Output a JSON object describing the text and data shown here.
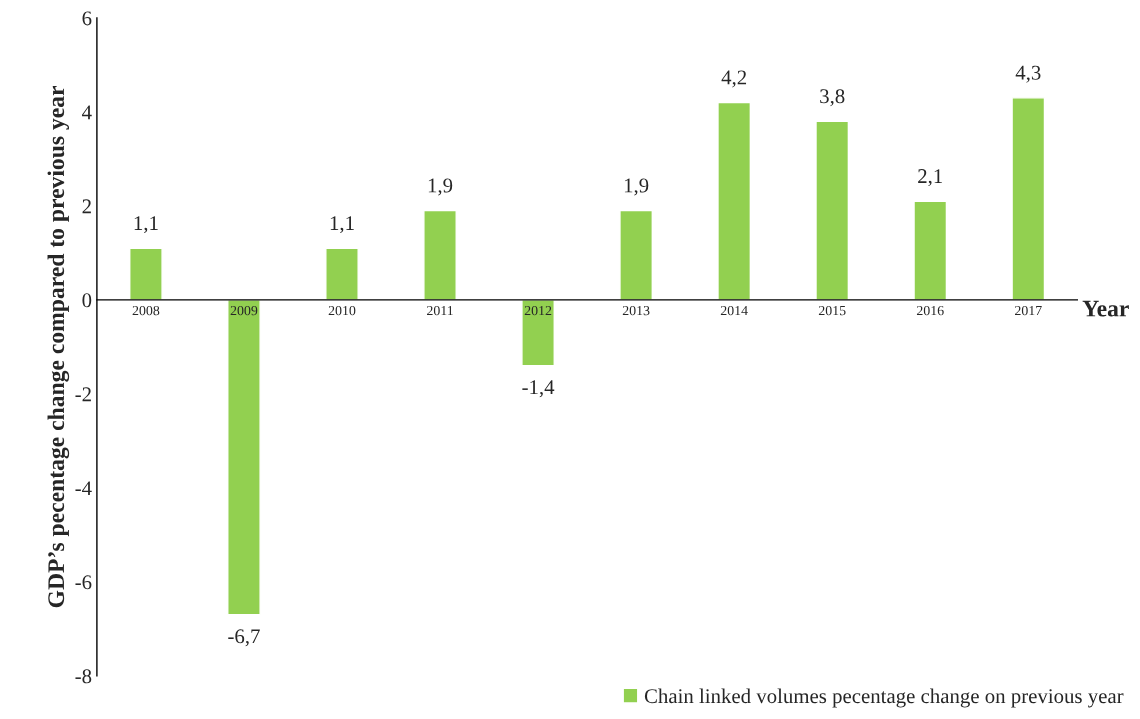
{
  "chart_data": {
    "type": "bar",
    "ylabel": "GDP’s pecentage change compared to previous year",
    "xlabel": "Year",
    "categories": [
      "2008",
      "2009",
      "2010",
      "2011",
      "2012",
      "2013",
      "2014",
      "2015",
      "2016",
      "2017"
    ],
    "series": [
      {
        "name": "Chain linked volumes pecentage change on previous year",
        "color": "#92d050",
        "values": [
          1.1,
          -6.7,
          1.1,
          1.9,
          -1.4,
          1.9,
          4.2,
          3.8,
          2.1,
          4.3
        ],
        "value_labels": [
          "1,1",
          "-6,7",
          "1,1",
          "1,9",
          "-1,4",
          "1,9",
          "4,2",
          "3,8",
          "2,1",
          "4,3"
        ]
      }
    ],
    "ylim": [
      -8,
      6
    ],
    "yticks": [
      -8,
      -6,
      -4,
      -2,
      0,
      2,
      4,
      6
    ],
    "grid": false,
    "legend": "bottom right"
  }
}
